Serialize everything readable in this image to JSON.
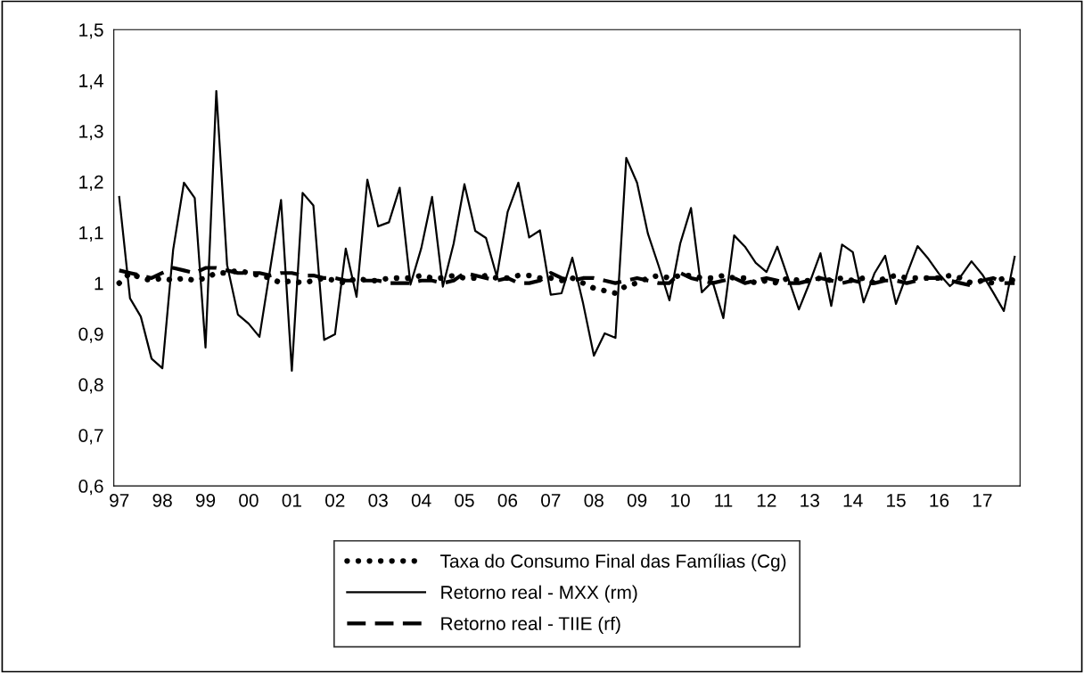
{
  "chart_data": {
    "type": "line",
    "categories": [
      "97",
      null,
      null,
      null,
      "98",
      null,
      null,
      null,
      "99",
      null,
      null,
      null,
      "00",
      null,
      null,
      null,
      "01",
      null,
      null,
      null,
      "02",
      null,
      null,
      null,
      "03",
      null,
      null,
      null,
      "04",
      null,
      null,
      null,
      "05",
      null,
      null,
      null,
      "06",
      null,
      null,
      null,
      "07",
      null,
      null,
      null,
      "08",
      null,
      null,
      null,
      "09",
      null,
      null,
      null,
      "10",
      null,
      null,
      null,
      "11",
      null,
      null,
      null,
      "12",
      null,
      null,
      null,
      "13",
      null,
      null,
      null,
      "14",
      null,
      null,
      null,
      "15",
      null,
      null,
      null,
      "16",
      null,
      null,
      null,
      "17",
      null,
      null,
      null
    ],
    "series": [
      {
        "name": "Taxa do Consumo Final das Famílias (Cg)",
        "color": "#000000",
        "line_style": "dotted",
        "values": [
          1.0,
          1.02,
          1.01,
          1.005,
          1.01,
          1.005,
          1.01,
          1.005,
          1.01,
          1.02,
          1.02,
          1.025,
          1.02,
          1.015,
          1.01,
          1.0,
          1.005,
          1.0,
          1.005,
          1.01,
          1.005,
          1.0,
          1.01,
          1.005,
          1.005,
          1.01,
          1.01,
          1.01,
          1.015,
          1.01,
          1.01,
          1.015,
          1.01,
          1.01,
          1.015,
          1.01,
          1.01,
          1.015,
          1.015,
          1.01,
          1.01,
          1.005,
          1.01,
          1.0,
          0.99,
          0.985,
          0.98,
          0.995,
          1.0,
          1.01,
          1.015,
          1.01,
          1.015,
          1.015,
          1.01,
          1.01,
          1.015,
          1.01,
          1.01,
          1.0,
          1.005,
          1.0,
          1.01,
          1.005,
          1.005,
          1.01,
          1.005,
          1.01,
          1.005,
          1.01,
          1.0,
          1.01,
          1.015,
          1.01,
          1.01,
          1.01,
          1.01,
          1.015,
          1.01,
          1.0,
          1.005,
          1.0,
          1.01,
          1.005
        ]
      },
      {
        "name": "Retorno real - MXX (rm)",
        "color": "#000000",
        "line_style": "solid",
        "values": [
          1.17,
          0.97,
          0.934,
          0.851,
          0.832,
          1.066,
          1.198,
          1.168,
          0.873,
          1.379,
          1.036,
          0.938,
          0.92,
          0.894,
          1.029,
          1.164,
          0.827,
          1.178,
          1.153,
          0.888,
          0.899,
          1.068,
          0.973,
          1.204,
          1.112,
          1.12,
          1.188,
          0.997,
          1.069,
          1.17,
          0.993,
          1.078,
          1.195,
          1.103,
          1.089,
          1.013,
          1.14,
          1.198,
          1.09,
          1.104,
          0.977,
          0.98,
          1.05,
          0.96,
          0.857,
          0.901,
          0.892,
          1.247,
          1.198,
          1.098,
          1.034,
          0.966,
          1.078,
          1.148,
          0.982,
          1.003,
          0.931,
          1.094,
          1.072,
          1.04,
          1.022,
          1.072,
          1.01,
          0.948,
          1.001,
          1.059,
          0.955,
          1.076,
          1.061,
          0.962,
          1.019,
          1.054,
          0.959,
          1.017,
          1.073,
          1.048,
          1.018,
          0.994,
          1.013,
          1.043,
          1.017,
          0.982,
          0.945,
          1.052
        ]
      },
      {
        "name": "Retorno real - TIIE (rf)",
        "color": "#000000",
        "line_style": "dashed",
        "values": [
          1.025,
          1.02,
          1.015,
          1.01,
          1.02,
          1.03,
          1.025,
          1.02,
          1.03,
          1.03,
          1.025,
          1.02,
          1.02,
          1.02,
          1.015,
          1.02,
          1.02,
          1.015,
          1.015,
          1.01,
          1.01,
          1.005,
          1.005,
          1.005,
          1.005,
          1.0,
          1.0,
          1.0,
          1.005,
          1.005,
          1.0,
          1.005,
          1.02,
          1.015,
          1.01,
          1.005,
          1.01,
          1.0,
          1.0,
          1.005,
          1.02,
          1.01,
          1.005,
          1.01,
          1.01,
          1.005,
          1.0,
          1.005,
          1.01,
          1.005,
          1.0,
          1.0,
          1.02,
          1.01,
          1.005,
          1.0,
          1.005,
          1.01,
          1.0,
          1.005,
          1.01,
          1.005,
          1.0,
          1.0,
          1.005,
          1.01,
          1.005,
          1.0,
          1.005,
          1.0,
          1.0,
          1.005,
          1.005,
          1.0,
          1.005,
          1.01,
          1.01,
          1.005,
          1.0,
          0.995,
          1.005,
          1.01,
          1.0,
          1.0
        ]
      }
    ],
    "ylim": [
      0.6,
      1.5
    ],
    "yticks": [
      {
        "value": 0.6,
        "label": "0,6"
      },
      {
        "value": 0.7,
        "label": "0,7"
      },
      {
        "value": 0.8,
        "label": "0,8"
      },
      {
        "value": 0.9,
        "label": "0,9"
      },
      {
        "value": 1.0,
        "label": "1"
      },
      {
        "value": 1.1,
        "label": "1,1"
      },
      {
        "value": 1.2,
        "label": "1,2"
      },
      {
        "value": 1.3,
        "label": "1,3"
      },
      {
        "value": 1.4,
        "label": "1,4"
      },
      {
        "value": 1.5,
        "label": "1,5"
      }
    ],
    "grid": false,
    "legend": "bottom"
  }
}
